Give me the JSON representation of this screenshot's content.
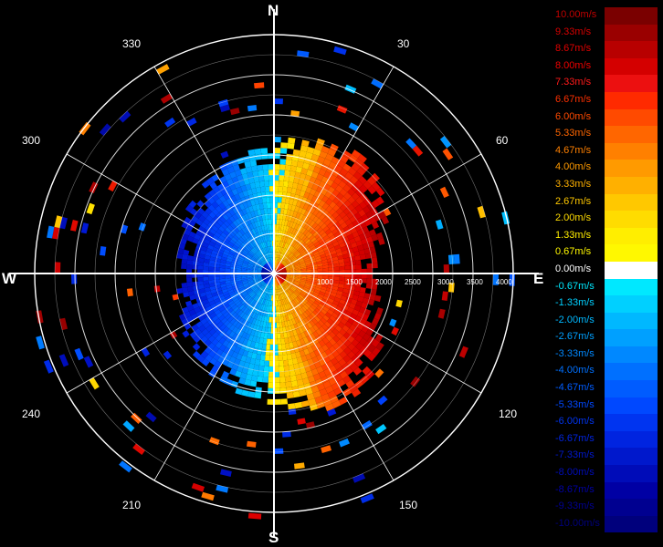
{
  "compass": {
    "north": "N",
    "south": "S",
    "east": "E",
    "west": "W"
  },
  "azimuth_labels": [
    "30",
    "60",
    "120",
    "150",
    "210",
    "240",
    "300",
    "330"
  ],
  "range_labels": [
    "1000",
    "1500",
    "2000",
    "2500",
    "3000",
    "3500",
    "4000"
  ],
  "legend": [
    {
      "label": "10.00m/s",
      "color": "#7a0000",
      "text_color": "#c00000"
    },
    {
      "label": "9.33m/s",
      "color": "#9a0000",
      "text_color": "#d40000"
    },
    {
      "label": "8.67m/s",
      "color": "#b80000",
      "text_color": "#e00000"
    },
    {
      "label": "8.00m/s",
      "color": "#d40000",
      "text_color": "#ee0000"
    },
    {
      "label": "7.33m/s",
      "color": "#ec1010",
      "text_color": "#ff1a1a"
    },
    {
      "label": "6.67m/s",
      "color": "#ff2a00",
      "text_color": "#ff3000"
    },
    {
      "label": "6.00m/s",
      "color": "#ff4a00",
      "text_color": "#ff4a00"
    },
    {
      "label": "5.33m/s",
      "color": "#ff6600",
      "text_color": "#ff6600"
    },
    {
      "label": "4.67m/s",
      "color": "#ff8000",
      "text_color": "#ff8000"
    },
    {
      "label": "4.00m/s",
      "color": "#ff9a00",
      "text_color": "#ff9a00"
    },
    {
      "label": "3.33m/s",
      "color": "#ffb000",
      "text_color": "#ffb000"
    },
    {
      "label": "2.67m/s",
      "color": "#ffc800",
      "text_color": "#ffc800"
    },
    {
      "label": "2.00m/s",
      "color": "#ffdc00",
      "text_color": "#ffdc00"
    },
    {
      "label": "1.33m/s",
      "color": "#ffee00",
      "text_color": "#ffee00"
    },
    {
      "label": "0.67m/s",
      "color": "#fff800",
      "text_color": "#fff800"
    },
    {
      "label": "0.00m/s",
      "color": "#ffffff",
      "text_color": "#ffffff"
    },
    {
      "label": "-0.67m/s",
      "color": "#00e8ff",
      "text_color": "#00e8ff"
    },
    {
      "label": "-1.33m/s",
      "color": "#00d0ff",
      "text_color": "#00d0ff"
    },
    {
      "label": "-2.00m/s",
      "color": "#00b8ff",
      "text_color": "#00b8ff"
    },
    {
      "label": "-2.67m/s",
      "color": "#00a0ff",
      "text_color": "#00a0ff"
    },
    {
      "label": "-3.33m/s",
      "color": "#0088ff",
      "text_color": "#0088ff"
    },
    {
      "label": "-4.00m/s",
      "color": "#0070ff",
      "text_color": "#0070ff"
    },
    {
      "label": "-4.67m/s",
      "color": "#005cff",
      "text_color": "#005cff"
    },
    {
      "label": "-5.33m/s",
      "color": "#0048ff",
      "text_color": "#0048ff"
    },
    {
      "label": "-6.00m/s",
      "color": "#0034f0",
      "text_color": "#0034f0"
    },
    {
      "label": "-6.67m/s",
      "color": "#0024e0",
      "text_color": "#0024e0"
    },
    {
      "label": "-7.33m/s",
      "color": "#0018cc",
      "text_color": "#0018cc"
    },
    {
      "label": "-8.00m/s",
      "color": "#000cb8",
      "text_color": "#000cb8"
    },
    {
      "label": "-8.67m/s",
      "color": "#0000a4",
      "text_color": "#0000a4"
    },
    {
      "label": "-9.33m/s",
      "color": "#000090",
      "text_color": "#000090"
    },
    {
      "label": "-10.00m/s",
      "color": "#00007c",
      "text_color": "#00007c"
    }
  ]
}
